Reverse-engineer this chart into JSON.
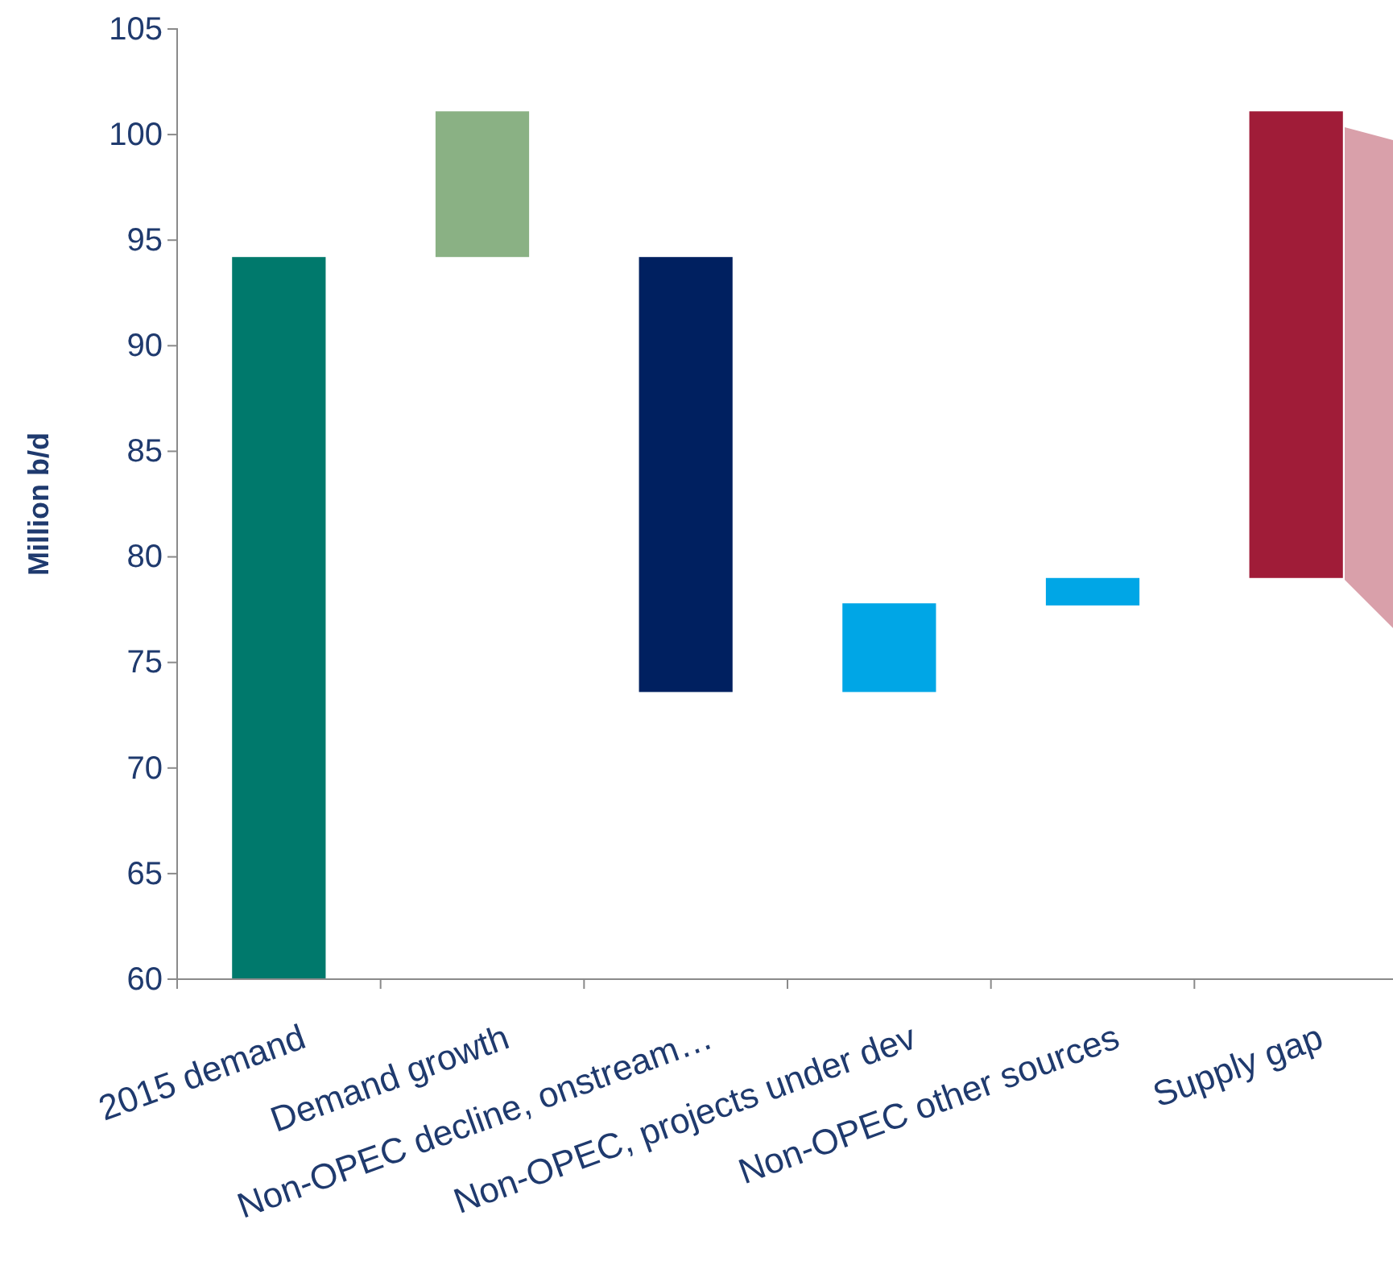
{
  "chart_data": {
    "type": "bar",
    "ylabel": "Million b/d",
    "categories": [
      "2015 demand",
      "Demand growth",
      "Non-OPEC decline, onstream…",
      "Non-OPEC, projects under dev",
      "Non-OPEC other sources",
      "Supply gap"
    ],
    "base": [
      60,
      94.2,
      73.6,
      73.6,
      77.7,
      79.0
    ],
    "values": [
      34.2,
      6.9,
      20.6,
      4.2,
      1.3,
      22.1
    ],
    "colors": [
      "#00796c",
      "#8ab184",
      "#002060",
      "#00a6e6",
      "#00a6e6",
      "#a01c38"
    ],
    "ylim": [
      60,
      105
    ],
    "yticks": [
      60,
      65,
      70,
      75,
      80,
      85,
      90,
      95,
      100,
      105
    ],
    "grid": false
  }
}
